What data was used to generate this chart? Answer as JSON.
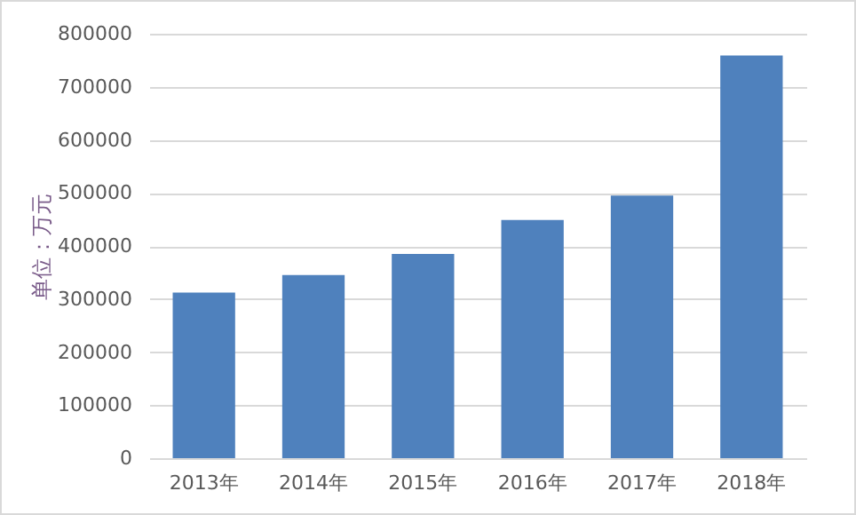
{
  "chart_data": {
    "type": "bar",
    "ylabel": "单位：万元",
    "categories": [
      "2013年",
      "2014年",
      "2015年",
      "2016年",
      "2017年",
      "2018年"
    ],
    "values": [
      312000,
      345000,
      385000,
      449000,
      495000,
      759000
    ],
    "color": "#4f81bd",
    "ylim": [
      0,
      800000
    ],
    "yticks": [
      0,
      100000,
      200000,
      300000,
      400000,
      500000,
      600000,
      700000,
      800000
    ],
    "grid": "y"
  }
}
